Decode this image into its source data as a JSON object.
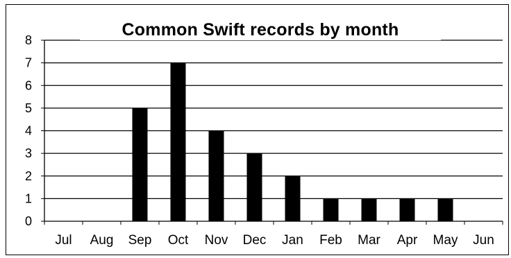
{
  "chart_data": {
    "type": "bar",
    "title": "Common Swift records by month",
    "categories": [
      "Jul",
      "Aug",
      "Sep",
      "Oct",
      "Nov",
      "Dec",
      "Jan",
      "Feb",
      "Mar",
      "Apr",
      "May",
      "Jun"
    ],
    "values": [
      0,
      0,
      5,
      7,
      4,
      3,
      2,
      1,
      1,
      1,
      1,
      0
    ],
    "ylim": [
      0,
      8
    ],
    "yticks": [
      "0",
      "1",
      "2",
      "3",
      "4",
      "5",
      "6",
      "7",
      "8"
    ],
    "xlabel": "",
    "ylabel": "",
    "grid": true,
    "legend": "none",
    "bar_color": "#000000",
    "grid_color": "#000000"
  }
}
